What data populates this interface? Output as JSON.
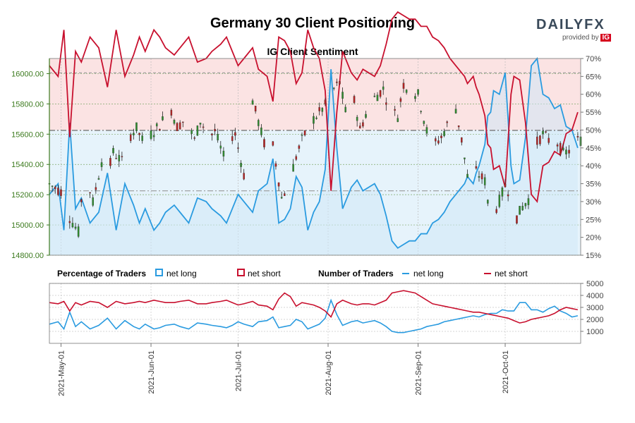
{
  "title": "Germany 30 Client Positioning",
  "logo": {
    "text": "DAILYFX",
    "provided_by": "provided by",
    "ig": "IG"
  },
  "colors": {
    "net_long": "#2a9be0",
    "net_short": "#c8102e",
    "candle_up": "#2e8b2e",
    "candle_down": "#b22222",
    "short_zone": "#fbe3e3",
    "long_zone": "#e6f3fb",
    "left_axis": "#3c7a1e"
  },
  "legend": {
    "percentage_label": "Percentage of Traders",
    "number_label": "Number of Traders",
    "net_long": "net long",
    "net_short": "net short"
  },
  "chart_data": [
    {
      "type": "candlestick",
      "title": "IG Client Sentiment",
      "ylim": [
        14800,
        16100
      ],
      "y_ticks": [
        "14800.00",
        "15000.00",
        "15200.00",
        "15400.00",
        "15600.00",
        "15800.00",
        "16000.00"
      ],
      "right_axis": {
        "ylim": [
          15,
          70
        ],
        "ticks": [
          "15%",
          "20%",
          "25%",
          "30%",
          "35%",
          "40%",
          "45%",
          "50%",
          "55%",
          "60%",
          "65%",
          "70%"
        ]
      },
      "reference_lines": {
        "price_dashdot": 15625,
        "pct_dashdot_upper": 50,
        "pct_dashdot_lower": 33,
        "pct_dashed_top": 66
      },
      "x_labels": [
        "2021-May-01",
        "2021-Jun-01",
        "2021-Jul-01",
        "2021-Aug-01",
        "2021-Sep-01",
        "2021-Oct-01"
      ],
      "x_label_days": [
        4,
        35,
        65,
        96,
        127,
        157
      ],
      "total_days": 183,
      "candle_anchor_days": [
        0,
        4,
        7,
        10,
        12,
        15,
        18,
        20,
        22,
        25,
        27,
        30,
        32,
        35,
        38,
        40,
        42,
        44,
        47,
        50,
        52,
        55,
        57,
        60,
        62,
        64,
        67,
        70,
        72,
        75,
        77,
        80,
        82,
        85,
        87,
        90,
        92,
        95,
        97,
        100,
        102,
        105,
        107,
        110,
        112,
        115,
        117,
        120,
        122,
        125,
        127,
        130,
        132,
        135,
        137,
        140,
        142,
        145,
        147,
        150,
        152,
        155,
        157,
        159,
        161,
        163,
        165,
        167,
        170,
        172,
        175,
        177,
        180,
        182
      ],
      "candle_anchor_prices": [
        15270,
        15220,
        15050,
        14950,
        15380,
        15150,
        15420,
        15330,
        15480,
        15420,
        15570,
        15640,
        15560,
        15600,
        15660,
        15720,
        15760,
        15650,
        15700,
        15560,
        15690,
        15580,
        15620,
        15450,
        15580,
        15600,
        15330,
        15820,
        15680,
        15470,
        15520,
        15180,
        15250,
        15450,
        15560,
        15680,
        15720,
        15790,
        15880,
        15940,
        15750,
        15820,
        15630,
        15780,
        15840,
        15900,
        15770,
        15720,
        15930,
        15880,
        15860,
        15620,
        15520,
        15580,
        15660,
        15770,
        15560,
        15200,
        15350,
        15290,
        15020,
        15160,
        15260,
        15200,
        15050,
        15120,
        15170,
        15520,
        15600,
        15560,
        15540,
        15470,
        15500,
        15560
      ],
      "pct_series": {
        "net_long_days": [
          0,
          3,
          5,
          7,
          9,
          11,
          14,
          17,
          20,
          23,
          26,
          29,
          31,
          33,
          36,
          38,
          40,
          43,
          45,
          48,
          51,
          54,
          56,
          59,
          61,
          63,
          65,
          67,
          70,
          72,
          75,
          77,
          79,
          81,
          83,
          85,
          87,
          89,
          91,
          93,
          95,
          97,
          99,
          101,
          104,
          106,
          108,
          110,
          112,
          114,
          116,
          118,
          120,
          122,
          124,
          126,
          128,
          130,
          132,
          134,
          136,
          138,
          140,
          142,
          143,
          144,
          146,
          147,
          148,
          150,
          151,
          152,
          153,
          155,
          157,
          158,
          159,
          160,
          162,
          164,
          166,
          168,
          170,
          172,
          174,
          176,
          178,
          180,
          182
        ],
        "net_long_pct": [
          32,
          35,
          22,
          52,
          28,
          31,
          24,
          27,
          38,
          22,
          35,
          29,
          24,
          28,
          22,
          24,
          27,
          29,
          27,
          24,
          31,
          30,
          28,
          26,
          24,
          28,
          32,
          30,
          27,
          33,
          35,
          42,
          24,
          25,
          28,
          37,
          34,
          22,
          27,
          30,
          39,
          67,
          45,
          28,
          34,
          36,
          33,
          34,
          35,
          32,
          26,
          19,
          17,
          18,
          19,
          19,
          21,
          21,
          24,
          25,
          27,
          30,
          32,
          34,
          35,
          37,
          35,
          38,
          40,
          46,
          54,
          55,
          61,
          60,
          66,
          53,
          40,
          35,
          36,
          48,
          68,
          70,
          60,
          59,
          56,
          57,
          51,
          50,
          45
        ],
        "net_short_pct": [
          68,
          65,
          78,
          48,
          72,
          69,
          76,
          73,
          62,
          78,
          65,
          71,
          76,
          72,
          78,
          76,
          73,
          71,
          73,
          76,
          69,
          70,
          72,
          74,
          76,
          72,
          68,
          70,
          73,
          67,
          65,
          58,
          76,
          75,
          72,
          63,
          66,
          78,
          73,
          70,
          61,
          33,
          55,
          72,
          66,
          64,
          67,
          66,
          65,
          68,
          74,
          81,
          83,
          82,
          81,
          81,
          79,
          79,
          76,
          75,
          73,
          70,
          68,
          66,
          65,
          63,
          65,
          62,
          60,
          54,
          46,
          45,
          39,
          40,
          34,
          47,
          60,
          65,
          64,
          52,
          32,
          30,
          40,
          41,
          44,
          43,
          49,
          50,
          55
        ]
      }
    },
    {
      "type": "line",
      "ylim": [
        0,
        5000
      ],
      "y_ticks": [
        "1000",
        "2000",
        "3000",
        "4000",
        "5000"
      ],
      "series": [
        {
          "name": "net long",
          "days": [
            0,
            3,
            5,
            7,
            9,
            11,
            14,
            17,
            20,
            23,
            26,
            29,
            31,
            33,
            36,
            38,
            40,
            43,
            45,
            48,
            51,
            54,
            56,
            59,
            61,
            63,
            65,
            67,
            70,
            72,
            75,
            77,
            79,
            81,
            83,
            85,
            87,
            89,
            91,
            93,
            95,
            97,
            99,
            101,
            104,
            106,
            108,
            110,
            112,
            114,
            116,
            118,
            120,
            122,
            124,
            126,
            128,
            130,
            132,
            134,
            136,
            138,
            140,
            142,
            144,
            146,
            148,
            150,
            152,
            154,
            156,
            158,
            160,
            162,
            164,
            166,
            168,
            170,
            172,
            174,
            176,
            178,
            180,
            182
          ],
          "values": [
            1600,
            1800,
            1200,
            2600,
            1400,
            1800,
            1200,
            1500,
            2100,
            1200,
            1900,
            1400,
            1200,
            1600,
            1200,
            1300,
            1500,
            1600,
            1400,
            1200,
            1700,
            1600,
            1500,
            1400,
            1300,
            1500,
            1800,
            1600,
            1400,
            1800,
            1900,
            2200,
            1300,
            1400,
            1500,
            2000,
            1800,
            1200,
            1400,
            1600,
            2100,
            3600,
            2400,
            1500,
            1800,
            1900,
            1700,
            1800,
            1900,
            1700,
            1400,
            1000,
            900,
            900,
            1000,
            1100,
            1200,
            1400,
            1500,
            1600,
            1800,
            1900,
            2000,
            2100,
            2200,
            2300,
            2200,
            2400,
            2500,
            2500,
            2800,
            2700,
            2700,
            3400,
            3400,
            2800,
            2800,
            2600,
            2900,
            3100,
            2700,
            2500,
            2200,
            2300
          ]
        },
        {
          "name": "net short",
          "days": [
            0,
            3,
            5,
            7,
            9,
            11,
            14,
            17,
            20,
            23,
            26,
            29,
            31,
            33,
            36,
            38,
            40,
            43,
            45,
            48,
            51,
            54,
            56,
            59,
            61,
            63,
            65,
            67,
            70,
            72,
            75,
            77,
            79,
            81,
            83,
            85,
            87,
            89,
            91,
            93,
            95,
            97,
            99,
            101,
            104,
            106,
            108,
            110,
            112,
            114,
            116,
            118,
            120,
            122,
            124,
            126,
            128,
            130,
            132,
            134,
            136,
            138,
            140,
            142,
            144,
            146,
            148,
            150,
            152,
            154,
            156,
            158,
            160,
            162,
            164,
            166,
            168,
            170,
            172,
            174,
            176,
            178,
            180,
            182
          ],
          "values": [
            3400,
            3300,
            3500,
            2700,
            3400,
            3200,
            3500,
            3400,
            3000,
            3500,
            3300,
            3400,
            3500,
            3400,
            3600,
            3500,
            3400,
            3400,
            3500,
            3600,
            3300,
            3300,
            3400,
            3500,
            3600,
            3400,
            3200,
            3300,
            3500,
            3200,
            3100,
            2800,
            3700,
            4200,
            3900,
            3100,
            3400,
            3300,
            3200,
            3000,
            2700,
            2200,
            3300,
            3600,
            3300,
            3200,
            3300,
            3300,
            3200,
            3400,
            3600,
            4200,
            4300,
            4400,
            4300,
            4200,
            3900,
            3600,
            3300,
            3200,
            3100,
            3000,
            2900,
            2800,
            2700,
            2600,
            2600,
            2500,
            2400,
            2300,
            2200,
            2100,
            1900,
            1700,
            1800,
            2000,
            2100,
            2200,
            2300,
            2500,
            2800,
            3000,
            2900,
            2800
          ]
        }
      ]
    }
  ]
}
